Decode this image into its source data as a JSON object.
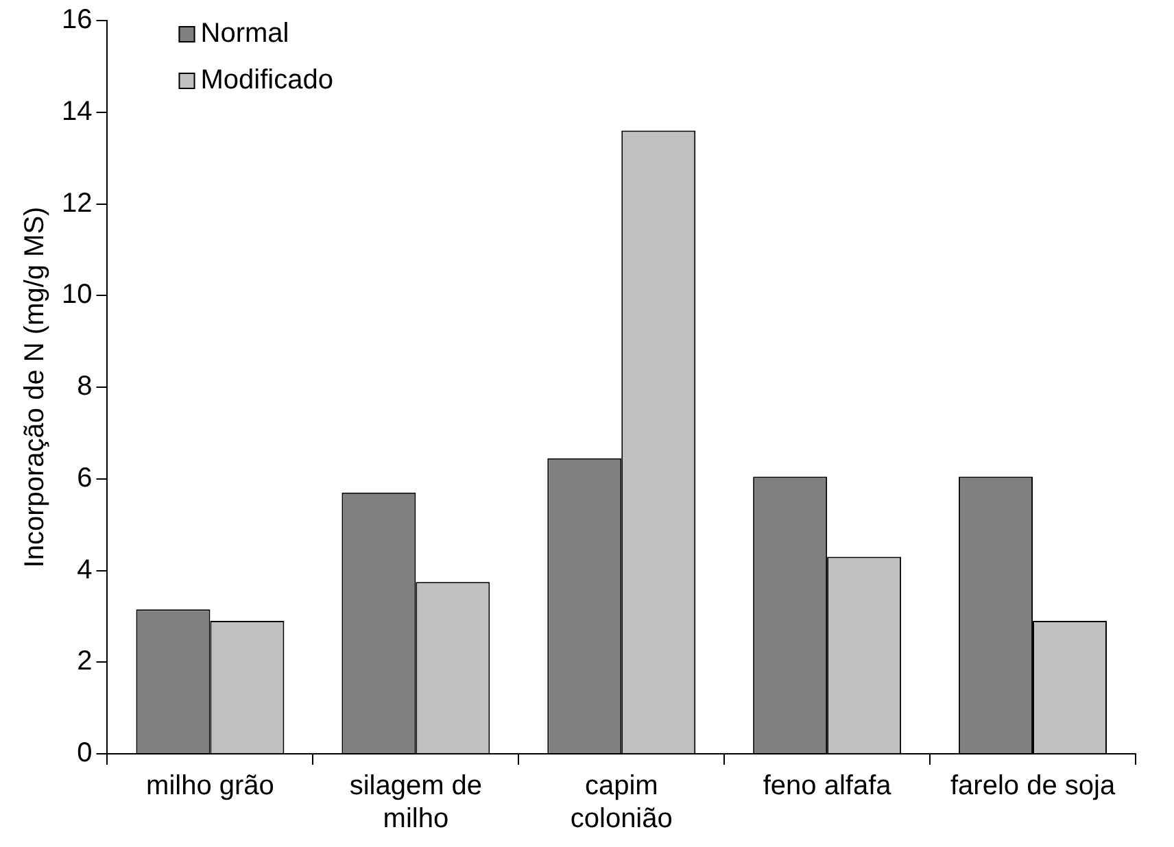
{
  "chart_data": {
    "type": "bar",
    "ylabel": "Incorporação de N (mg/g MS)",
    "categories": [
      "milho grão",
      "silagem de milho",
      "capim colonião",
      "feno alfafa",
      "farelo de soja"
    ],
    "series": [
      {
        "name": "Normal",
        "color": "#808080",
        "values": [
          3.15,
          5.7,
          6.45,
          6.05,
          6.05
        ]
      },
      {
        "name": "Modificado",
        "color": "#c0c0c0",
        "values": [
          2.9,
          3.75,
          13.6,
          4.3,
          2.9
        ]
      }
    ],
    "ylim": [
      0,
      16
    ],
    "yticks": [
      0,
      2,
      4,
      6,
      8,
      10,
      12,
      14,
      16
    ],
    "grid": false,
    "legend": "top left"
  }
}
